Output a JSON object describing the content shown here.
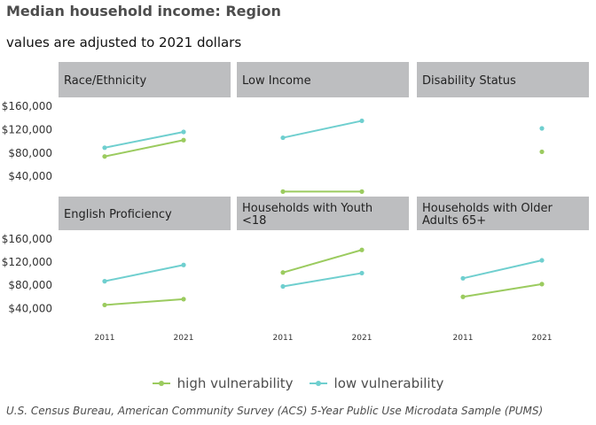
{
  "title": "Median household income: Region",
  "subtitle": "values are adjusted to 2021 dollars",
  "caption": "U.S. Census Bureau, American Community Survey (ACS) 5-Year Public Use Microdata Sample (PUMS)",
  "colors": {
    "high": "#9bcb5f",
    "low": "#6fcfcf",
    "strip": "#bdbec0"
  },
  "chart_data": {
    "type": "line",
    "x": [
      "2011",
      "2021"
    ],
    "y_ticks": [
      "$40,000",
      "$80,000",
      "$120,000",
      "$160,000"
    ],
    "ylim": [
      10000,
      175000
    ],
    "legend_position": "bottom",
    "series_names": [
      "high vulnerability",
      "low vulnerability"
    ],
    "panels": [
      {
        "title": "Race/Ethnicity",
        "series": [
          {
            "name": "high vulnerability",
            "values": [
              74000,
              102000
            ]
          },
          {
            "name": "low vulnerability",
            "values": [
              89000,
              116000
            ]
          }
        ]
      },
      {
        "title": "Low Income",
        "series": [
          {
            "name": "high vulnerability",
            "values": [
              14000,
              14000
            ]
          },
          {
            "name": "low vulnerability",
            "values": [
              106000,
              135000
            ]
          }
        ]
      },
      {
        "title": "Disability Status",
        "series": [
          {
            "name": "high vulnerability",
            "values": [
              null,
              82000
            ]
          },
          {
            "name": "low vulnerability",
            "values": [
              null,
              122000
            ]
          }
        ]
      },
      {
        "title": "English Proficiency",
        "series": [
          {
            "name": "high vulnerability",
            "values": [
              46000,
              56000
            ]
          },
          {
            "name": "low vulnerability",
            "values": [
              87000,
              115000
            ]
          }
        ]
      },
      {
        "title": "Households with Youth <18",
        "series": [
          {
            "name": "high vulnerability",
            "values": [
              102000,
              141000
            ]
          },
          {
            "name": "low vulnerability",
            "values": [
              78000,
              101000
            ]
          }
        ]
      },
      {
        "title": "Households with Older Adults 65+",
        "series": [
          {
            "name": "high vulnerability",
            "values": [
              60000,
              82000
            ]
          },
          {
            "name": "low vulnerability",
            "values": [
              92000,
              123000
            ]
          }
        ]
      }
    ]
  }
}
